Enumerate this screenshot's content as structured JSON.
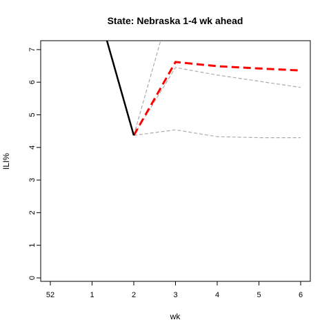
{
  "chart_data": {
    "type": "line",
    "title": "State: Nebraska 1-4 wk ahead",
    "xlabel": "wk",
    "ylabel": "ILI%",
    "x_ticks": [
      "52",
      "1",
      "2",
      "3",
      "4",
      "5",
      "6"
    ],
    "y_ticks": [
      "0",
      "1",
      "2",
      "3",
      "4",
      "5",
      "6",
      "7"
    ],
    "ylim": [
      0,
      7.3
    ],
    "grid": false,
    "legend": "none",
    "series": [
      {
        "role": "observed",
        "color": "#000000",
        "style": "solid",
        "points": [
          [
            1.35,
            7.3
          ],
          [
            2,
            4.37
          ]
        ]
      },
      {
        "role": "forecast",
        "color": "#ff0000",
        "style": "dashed",
        "points": [
          [
            2,
            4.37
          ],
          [
            3,
            6.62
          ],
          [
            4,
            6.49
          ],
          [
            5,
            6.42
          ],
          [
            6,
            6.36
          ]
        ]
      },
      {
        "role": "upper-outer",
        "color": "#aaaaaa",
        "style": "dashed",
        "points": [
          [
            2,
            4.37
          ],
          [
            2.65,
            7.3
          ]
        ]
      },
      {
        "role": "upper-inner",
        "color": "#aaaaaa",
        "style": "dashed",
        "points": [
          [
            2,
            4.37
          ],
          [
            3,
            6.45
          ],
          [
            4,
            6.22
          ],
          [
            5,
            6.03
          ],
          [
            6,
            5.84
          ]
        ]
      },
      {
        "role": "lower",
        "color": "#aaaaaa",
        "style": "dashed",
        "points": [
          [
            2,
            4.37
          ],
          [
            3,
            4.54
          ],
          [
            4,
            4.33
          ],
          [
            5,
            4.3
          ],
          [
            6,
            4.3
          ]
        ]
      }
    ]
  }
}
